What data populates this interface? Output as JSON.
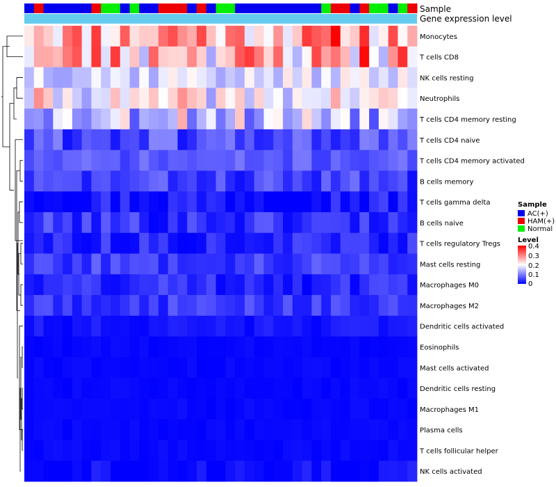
{
  "chart_data": {
    "type": "heatmap",
    "annotation_labels": [
      "Sample",
      "Gene expression level"
    ],
    "sample_groups": [
      "AC",
      "HAM",
      "AC",
      "AC",
      "AC",
      "AC",
      "AC",
      "HAM",
      "N",
      "N",
      "AC",
      "N",
      "AC",
      "AC",
      "HAM",
      "HAM",
      "HAM",
      "AC",
      "HAM",
      "AC",
      "N",
      "N",
      "AC",
      "AC",
      "AC",
      "AC",
      "AC",
      "AC",
      "AC",
      "AC",
      "AC",
      "N",
      "HAM",
      "HAM",
      "AC",
      "HAM",
      "N",
      "N",
      "AC",
      "N",
      "HAM"
    ],
    "sample_legend": {
      "title": "Sample",
      "entries": [
        {
          "key": "AC",
          "label": "AC(+)",
          "color": "#0000ee"
        },
        {
          "key": "HAM",
          "label": "HAM(+)",
          "color": "#ee0000"
        },
        {
          "key": "N",
          "label": "Normal",
          "color": "#00ee00"
        }
      ]
    },
    "expression_bar_color": "#66ccee",
    "level_legend": {
      "title": "Level",
      "ticks": [
        "0.4",
        "0.3",
        "0.2",
        "0.1",
        "0"
      ],
      "min": 0,
      "max": 0.4,
      "low_color": "#0000ff",
      "mid_color": "#ffffff",
      "high_color": "#ff0000"
    },
    "rows": [
      {
        "name": "Monocytes",
        "base": 0.27,
        "spread": 0.1,
        "seed": 11
      },
      {
        "name": "T cells CD8",
        "base": 0.25,
        "spread": 0.13,
        "seed": 23
      },
      {
        "name": "NK cells resting",
        "base": 0.17,
        "spread": 0.05,
        "seed": 37
      },
      {
        "name": "Neutrophils",
        "base": 0.19,
        "spread": 0.07,
        "seed": 41
      },
      {
        "name": "T cells CD4 memory resting",
        "base": 0.16,
        "spread": 0.1,
        "seed": 53
      },
      {
        "name": "T cells CD4 naive",
        "base": 0.06,
        "spread": 0.05,
        "seed": 61
      },
      {
        "name": "T cells CD4 memory activated",
        "base": 0.07,
        "spread": 0.025,
        "seed": 71
      },
      {
        "name": "B cells memory",
        "base": 0.05,
        "spread": 0.04,
        "seed": 83
      },
      {
        "name": "T cells gamma delta",
        "base": 0.025,
        "spread": 0.035,
        "seed": 97
      },
      {
        "name": "B cells naive",
        "base": 0.04,
        "spread": 0.04,
        "seed": 101
      },
      {
        "name": "T cells regulatory  Tregs",
        "base": 0.03,
        "spread": 0.03,
        "seed": 113
      },
      {
        "name": "Mast cells resting",
        "base": 0.05,
        "spread": 0.03,
        "seed": 127
      },
      {
        "name": "Macrophages M0",
        "base": 0.035,
        "spread": 0.035,
        "seed": 131
      },
      {
        "name": "Macrophages M2",
        "base": 0.045,
        "spread": 0.03,
        "seed": 149
      },
      {
        "name": "Dendritic cells activated",
        "base": 0.015,
        "spread": 0.015,
        "seed": 151
      },
      {
        "name": "Eosinophils",
        "base": 0.005,
        "spread": 0.005,
        "seed": 163
      },
      {
        "name": "Mast cells activated",
        "base": 0.005,
        "spread": 0.005,
        "seed": 173
      },
      {
        "name": "Dendritic cells resting",
        "base": 0.005,
        "spread": 0.005,
        "seed": 181
      },
      {
        "name": "Macrophages M1",
        "base": 0.006,
        "spread": 0.006,
        "seed": 191
      },
      {
        "name": "Plasma cells",
        "base": 0.005,
        "spread": 0.005,
        "seed": 193
      },
      {
        "name": "T cells follicular helper",
        "base": 0.006,
        "spread": 0.006,
        "seed": 197
      },
      {
        "name": "NK cells activated",
        "base": 0.012,
        "spread": 0.018,
        "seed": 199
      }
    ]
  }
}
